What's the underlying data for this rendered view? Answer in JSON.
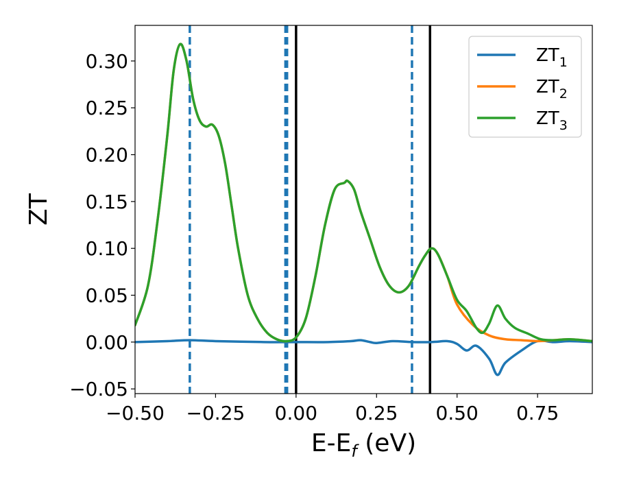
{
  "chart_data": {
    "type": "line",
    "xlabel": "E-E",
    "xlabel_sub": "f",
    "xlabel_unit": " (eV)",
    "ylabel": "ZT",
    "xlim": [
      -0.5,
      0.92
    ],
    "ylim": [
      -0.055,
      0.338
    ],
    "xticks": [
      -0.5,
      -0.25,
      0.0,
      0.25,
      0.5,
      0.75
    ],
    "xtick_labels": [
      "−0.50",
      "−0.25",
      "0.00",
      "0.25",
      "0.50",
      "0.75"
    ],
    "yticks": [
      -0.05,
      0.0,
      0.05,
      0.1,
      0.15,
      0.2,
      0.25,
      0.3
    ],
    "ytick_labels": [
      "−0.05",
      "0.00",
      "0.05",
      "0.10",
      "0.15",
      "0.20",
      "0.25",
      "0.30"
    ],
    "grid": false,
    "legend_position": "top-right",
    "series": [
      {
        "name": "ZT",
        "name_sub": "1",
        "color": "#1f77b4",
        "x": [
          -0.5,
          -0.4,
          -0.33,
          -0.25,
          -0.1,
          0.0,
          0.1,
          0.17,
          0.2,
          0.23,
          0.25,
          0.3,
          0.36,
          0.42,
          0.47,
          0.5,
          0.53,
          0.56,
          0.6,
          0.625,
          0.65,
          0.7,
          0.75,
          0.8,
          0.85,
          0.92
        ],
        "y": [
          0.0,
          0.001,
          0.002,
          0.001,
          0.0,
          0.0,
          0.0,
          0.001,
          0.002,
          0.0,
          -0.001,
          0.001,
          0.0,
          0.0,
          0.001,
          -0.002,
          -0.009,
          -0.004,
          -0.018,
          -0.035,
          -0.022,
          -0.009,
          0.001,
          0.0,
          0.001,
          0.0
        ]
      },
      {
        "name": "ZT",
        "name_sub": "2",
        "color": "#ff7f0e",
        "x": [
          -0.5,
          -0.46,
          -0.43,
          -0.4,
          -0.38,
          -0.36,
          -0.34,
          -0.32,
          -0.3,
          -0.28,
          -0.26,
          -0.24,
          -0.22,
          -0.2,
          -0.18,
          -0.15,
          -0.12,
          -0.09,
          -0.06,
          -0.03,
          0.0,
          0.03,
          0.06,
          0.09,
          0.12,
          0.15,
          0.16,
          0.18,
          0.2,
          0.23,
          0.26,
          0.29,
          0.32,
          0.35,
          0.38,
          0.4,
          0.42,
          0.44,
          0.47,
          0.5,
          0.55,
          0.6,
          0.65,
          0.7,
          0.75,
          0.8,
          0.85,
          0.92
        ],
        "y": [
          0.018,
          0.06,
          0.13,
          0.22,
          0.29,
          0.318,
          0.3,
          0.26,
          0.237,
          0.23,
          0.232,
          0.22,
          0.19,
          0.145,
          0.1,
          0.05,
          0.025,
          0.01,
          0.003,
          0.001,
          0.005,
          0.025,
          0.07,
          0.125,
          0.163,
          0.17,
          0.172,
          0.163,
          0.14,
          0.11,
          0.08,
          0.06,
          0.053,
          0.06,
          0.08,
          0.092,
          0.1,
          0.094,
          0.07,
          0.04,
          0.018,
          0.007,
          0.003,
          0.002,
          0.001,
          0.002,
          0.003,
          0.001
        ]
      },
      {
        "name": "ZT",
        "name_sub": "3",
        "color": "#2ca02c",
        "x": [
          -0.5,
          -0.46,
          -0.43,
          -0.4,
          -0.38,
          -0.36,
          -0.34,
          -0.32,
          -0.3,
          -0.28,
          -0.26,
          -0.24,
          -0.22,
          -0.2,
          -0.18,
          -0.15,
          -0.12,
          -0.09,
          -0.06,
          -0.03,
          0.0,
          0.03,
          0.06,
          0.09,
          0.12,
          0.15,
          0.16,
          0.18,
          0.2,
          0.23,
          0.26,
          0.29,
          0.32,
          0.35,
          0.38,
          0.4,
          0.42,
          0.44,
          0.47,
          0.5,
          0.53,
          0.56,
          0.58,
          0.6,
          0.625,
          0.65,
          0.68,
          0.72,
          0.76,
          0.8,
          0.85,
          0.92
        ],
        "y": [
          0.018,
          0.06,
          0.13,
          0.22,
          0.29,
          0.318,
          0.3,
          0.26,
          0.237,
          0.23,
          0.232,
          0.22,
          0.19,
          0.145,
          0.1,
          0.05,
          0.025,
          0.01,
          0.003,
          0.001,
          0.005,
          0.025,
          0.07,
          0.125,
          0.163,
          0.17,
          0.172,
          0.163,
          0.14,
          0.11,
          0.08,
          0.06,
          0.053,
          0.06,
          0.08,
          0.092,
          0.1,
          0.094,
          0.07,
          0.045,
          0.033,
          0.015,
          0.01,
          0.02,
          0.039,
          0.025,
          0.015,
          0.009,
          0.003,
          0.002,
          0.003,
          0.001
        ]
      }
    ],
    "vlines": [
      {
        "x": -0.33,
        "style": "dashed",
        "color": "#1f77b4"
      },
      {
        "x": -0.033,
        "style": "dashed",
        "color": "#1f77b4"
      },
      {
        "x": -0.028,
        "style": "dashed",
        "color": "#1f77b4"
      },
      {
        "x": 0.0,
        "style": "solid",
        "color": "#000000"
      },
      {
        "x": 0.36,
        "style": "dashed",
        "color": "#1f77b4"
      },
      {
        "x": 0.416,
        "style": "solid",
        "color": "#000000"
      }
    ]
  }
}
